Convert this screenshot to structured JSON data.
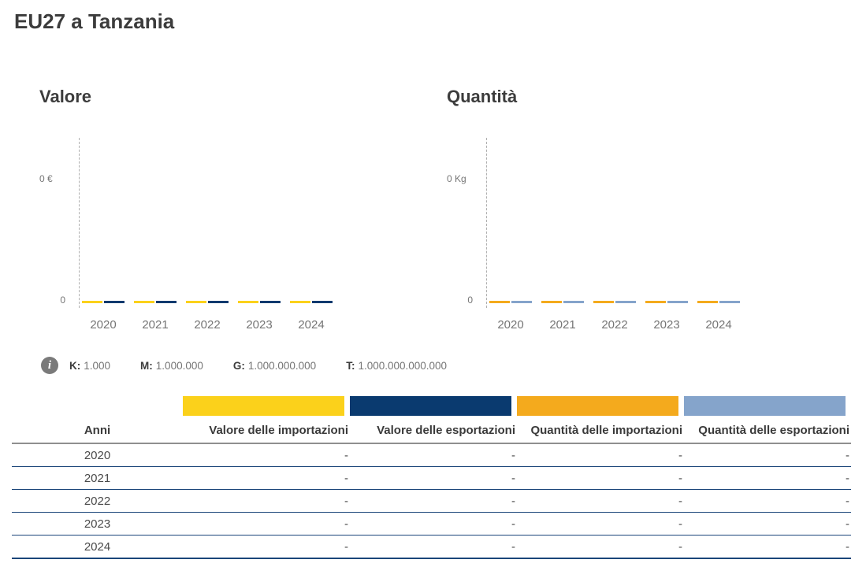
{
  "page_title": "EU27 a Tanzania",
  "accent_colors": {
    "valore_importazioni": "#FBD11B",
    "valore_esportazioni": "#0A3A6F",
    "quantita_importazioni": "#F4AA1D",
    "quantita_esportazioni": "#85A4CB",
    "row_divider": "#1a4579",
    "header_divider": "#8f8f8f"
  },
  "info_legend": {
    "icon": "info-icon",
    "items": [
      {
        "label": "K:",
        "value": "1.000"
      },
      {
        "label": "M:",
        "value": "1.000.000"
      },
      {
        "label": "G:",
        "value": "1.000.000.000"
      },
      {
        "label": "T:",
        "value": "1.000.000.000.000"
      }
    ]
  },
  "chart_data": [
    {
      "type": "bar",
      "title": "Valore",
      "categories": [
        "2020",
        "2021",
        "2022",
        "2023",
        "2024"
      ],
      "series": [
        {
          "name": "Valore delle importazioni",
          "color": "#FBD11B",
          "values": [
            0,
            0,
            0,
            0,
            0
          ]
        },
        {
          "name": "Valore delle esportazioni",
          "color": "#0A3A6F",
          "values": [
            0,
            0,
            0,
            0,
            0
          ]
        }
      ],
      "y_axis": {
        "top_label": "0 €",
        "zero_label": "0",
        "unit": "€",
        "range": [
          0,
          0
        ]
      },
      "grid": false,
      "legend": "color-bars-above-table"
    },
    {
      "type": "bar",
      "title": "Quantità",
      "categories": [
        "2020",
        "2021",
        "2022",
        "2023",
        "2024"
      ],
      "series": [
        {
          "name": "Quantità delle importazioni",
          "color": "#F4AA1D",
          "values": [
            0,
            0,
            0,
            0,
            0
          ]
        },
        {
          "name": "Quantità delle esportazioni",
          "color": "#85A4CB",
          "values": [
            0,
            0,
            0,
            0,
            0
          ]
        }
      ],
      "y_axis": {
        "top_label": "0 Kg",
        "zero_label": "0",
        "unit": "Kg",
        "range": [
          0,
          0
        ]
      },
      "grid": false,
      "legend": "color-bars-above-table"
    },
    {
      "type": "table",
      "columns": [
        "Anni",
        "Valore delle importazioni",
        "Valore delle esportazioni",
        "Quantità delle importazioni",
        "Quantità delle esportazioni"
      ],
      "column_swatches": [
        "",
        "#FBD11B",
        "#0A3A6F",
        "#F4AA1D",
        "#85A4CB"
      ],
      "rows": [
        [
          "2020",
          "-",
          "-",
          "-",
          "-"
        ],
        [
          "2021",
          "-",
          "-",
          "-",
          "-"
        ],
        [
          "2022",
          "-",
          "-",
          "-",
          "-"
        ],
        [
          "2023",
          "-",
          "-",
          "-",
          "-"
        ],
        [
          "2024",
          "-",
          "-",
          "-",
          "-"
        ]
      ]
    }
  ]
}
